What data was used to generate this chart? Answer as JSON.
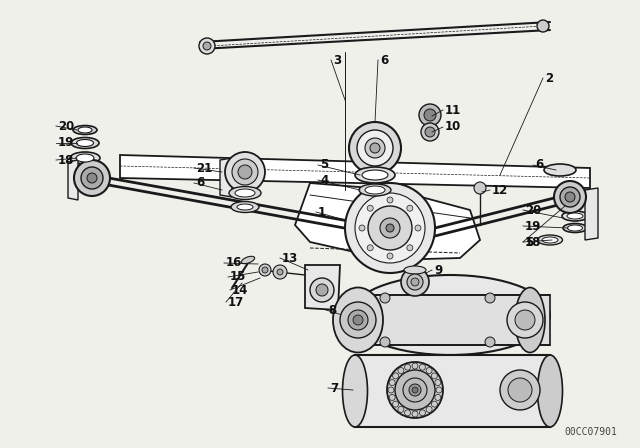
{
  "bg": "#f0f0eb",
  "lc": "#1a1a1a",
  "watermark": "00CC07901",
  "lw_main": 1.3,
  "lw_thin": 0.7,
  "lw_dot": 0.6,
  "label_fs": 8.5,
  "label_bold_fs": 10
}
